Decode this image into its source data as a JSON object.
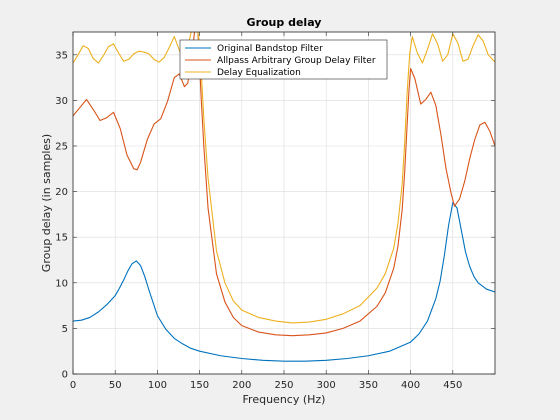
{
  "chart_data": {
    "type": "line",
    "title": "Group delay",
    "xlabel": "Frequency (Hz)",
    "ylabel": "Group delay (in samples)",
    "xlim": [
      0,
      500
    ],
    "ylim": [
      0,
      37.5
    ],
    "xticks": [
      0,
      50,
      100,
      150,
      200,
      250,
      300,
      350,
      400,
      450
    ],
    "yticks": [
      0,
      5,
      10,
      15,
      20,
      25,
      30,
      35
    ],
    "grid": true,
    "legend_position": "top-center",
    "series": [
      {
        "name": "Original Bandstop Filter",
        "color": "#0072BD",
        "x": [
          0,
          10,
          20,
          30,
          40,
          50,
          55,
          60,
          65,
          70,
          75,
          80,
          85,
          90,
          95,
          100,
          110,
          120,
          130,
          140,
          150,
          175,
          200,
          225,
          250,
          275,
          300,
          325,
          350,
          375,
          400,
          410,
          420,
          430,
          435,
          440,
          445,
          450,
          455,
          460,
          465,
          470,
          475,
          480,
          490,
          500
        ],
        "y": [
          5.8,
          5.9,
          6.2,
          6.8,
          7.6,
          8.6,
          9.4,
          10.3,
          11.3,
          12.1,
          12.4,
          11.9,
          10.7,
          9.2,
          7.8,
          6.4,
          4.9,
          3.9,
          3.3,
          2.8,
          2.5,
          2.0,
          1.7,
          1.5,
          1.4,
          1.4,
          1.5,
          1.7,
          2.0,
          2.5,
          3.5,
          4.4,
          5.8,
          8.3,
          10.2,
          13.0,
          16.3,
          18.8,
          18.2,
          15.8,
          13.4,
          11.8,
          10.7,
          10.0,
          9.3,
          9.0
        ]
      },
      {
        "name": "Allpass Arbitrary Group Delay Filter",
        "color": "#D95319",
        "x": [
          0,
          8,
          16,
          24,
          32,
          40,
          48,
          56,
          64,
          72,
          76,
          80,
          88,
          96,
          104,
          112,
          120,
          126,
          132,
          136,
          140,
          144,
          148,
          150,
          152,
          155,
          160,
          170,
          180,
          190,
          200,
          220,
          240,
          260,
          280,
          300,
          320,
          340,
          360,
          370,
          380,
          385,
          390,
          393,
          396,
          398,
          400,
          405,
          412,
          418,
          424,
          430,
          436,
          442,
          448,
          452,
          458,
          464,
          470,
          476,
          482,
          488,
          494,
          500
        ],
        "y": [
          28.3,
          29.2,
          30.1,
          29.0,
          27.8,
          28.1,
          28.7,
          26.9,
          24.0,
          22.5,
          22.4,
          23.2,
          25.7,
          27.4,
          28.0,
          29.9,
          32.5,
          32.9,
          31.5,
          31.9,
          34.2,
          37.5,
          37.5,
          34.0,
          30.0,
          25.0,
          18.2,
          11.0,
          7.9,
          6.2,
          5.3,
          4.6,
          4.3,
          4.2,
          4.3,
          4.5,
          5.0,
          5.8,
          7.4,
          8.9,
          11.6,
          14.0,
          18.0,
          22.2,
          27.5,
          31.0,
          33.5,
          32.4,
          29.6,
          30.1,
          30.9,
          29.4,
          26.2,
          22.5,
          19.8,
          18.4,
          19.2,
          21.1,
          23.6,
          25.7,
          27.3,
          27.6,
          26.6,
          25.0
        ]
      },
      {
        "name": "Delay Equalization",
        "color": "#EDB120",
        "x": [
          0,
          6,
          12,
          18,
          24,
          30,
          36,
          42,
          48,
          54,
          60,
          66,
          72,
          78,
          84,
          90,
          96,
          102,
          108,
          114,
          120,
          126,
          132,
          136,
          140,
          144,
          148,
          150,
          152,
          155,
          160,
          170,
          180,
          190,
          200,
          220,
          240,
          260,
          280,
          300,
          320,
          340,
          360,
          370,
          380,
          385,
          390,
          393,
          396,
          399,
          402,
          408,
          414,
          420,
          426,
          432,
          438,
          444,
          450,
          456,
          462,
          468,
          474,
          480,
          486,
          492,
          500
        ],
        "y": [
          34.1,
          35.0,
          36.0,
          35.7,
          34.6,
          34.1,
          34.9,
          35.9,
          36.2,
          35.2,
          34.3,
          34.5,
          35.1,
          35.4,
          35.3,
          35.1,
          34.5,
          34.2,
          34.7,
          35.8,
          37.0,
          35.5,
          34.4,
          35.8,
          37.5,
          37.5,
          37.5,
          36.0,
          33.0,
          28.0,
          21.5,
          13.5,
          10.0,
          8.0,
          7.0,
          6.2,
          5.8,
          5.6,
          5.7,
          6.0,
          6.6,
          7.5,
          9.4,
          11.0,
          13.8,
          16.5,
          20.8,
          25.4,
          31.0,
          35.2,
          37.0,
          35.2,
          34.1,
          35.6,
          37.3,
          36.2,
          34.3,
          35.0,
          37.3,
          36.3,
          34.3,
          34.5,
          36.0,
          37.2,
          36.5,
          35.0,
          34.2
        ]
      }
    ]
  }
}
